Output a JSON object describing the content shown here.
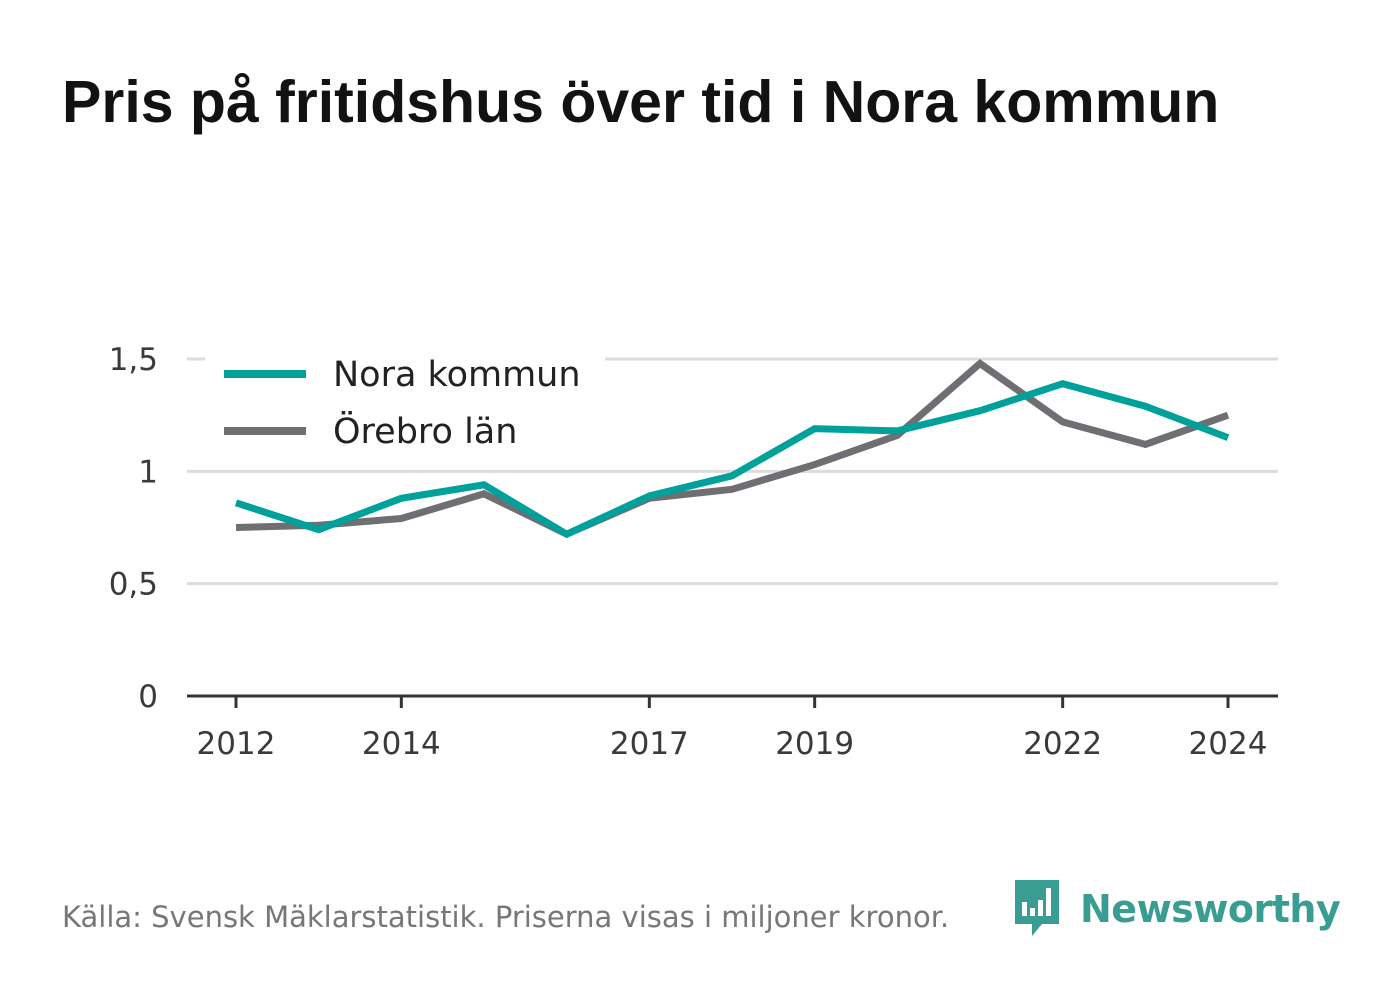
{
  "title": "Pris på fritidshus över tid i Nora kommun",
  "source": "Källa: Svensk Mäklarstatistik. Priserna visas i miljoner kronor.",
  "brand": {
    "name": "Newsworthy",
    "icon": "bar-chart-speech-bubble-icon",
    "color": "#3a9d93"
  },
  "chart_data": {
    "type": "line",
    "title": "Pris på fritidshus över tid i Nora kommun",
    "xlabel": "",
    "ylabel": "",
    "x": [
      2012,
      2013,
      2014,
      2015,
      2016,
      2017,
      2018,
      2019,
      2020,
      2021,
      2022,
      2023,
      2024
    ],
    "x_ticks": [
      "2012",
      "2014",
      "2017",
      "2019",
      "2022",
      "2024"
    ],
    "y_ticks": [
      "0",
      "0,5",
      "1",
      "1,5"
    ],
    "ylim": [
      0,
      1.5
    ],
    "grid": true,
    "legend_position": "top-left",
    "series": [
      {
        "name": "Nora kommun",
        "color": "#00a19a",
        "values": [
          0.86,
          0.74,
          0.88,
          0.94,
          0.72,
          0.89,
          0.98,
          1.19,
          1.18,
          1.27,
          1.39,
          1.29,
          1.15
        ]
      },
      {
        "name": "Örebro län",
        "color": "#6e6e73",
        "values": [
          0.75,
          0.76,
          0.79,
          0.9,
          0.72,
          0.88,
          0.92,
          1.03,
          1.16,
          1.48,
          1.22,
          1.12,
          1.25
        ]
      }
    ]
  }
}
